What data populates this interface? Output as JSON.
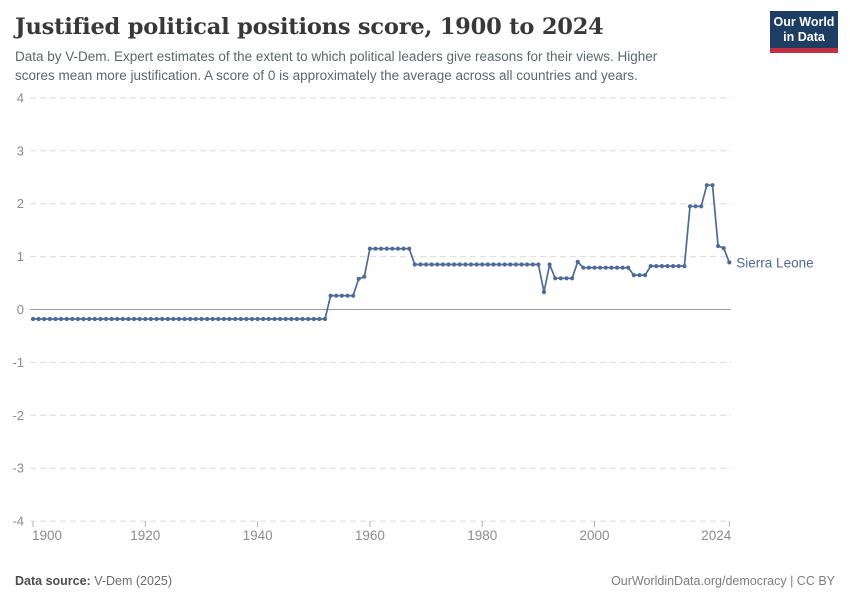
{
  "header": {
    "title": "Justified political positions score, 1900 to 2024",
    "subtitle_line1": "Data by V-Dem. Expert estimates of the extent to which political leaders give reasons for their views. Higher",
    "subtitle_line2": "scores mean more justification. A score of 0 is approximately the average across all countries and years.",
    "logo": {
      "line1": "Our World",
      "line2": "in Data"
    }
  },
  "chart_data": {
    "type": "line",
    "title": "Justified political positions score, 1900 to 2024",
    "xlabel": "",
    "ylabel": "",
    "xlim": [
      1900,
      2024
    ],
    "ylim": [
      -4,
      4
    ],
    "x_ticks": [
      1900,
      1920,
      1940,
      1960,
      1980,
      2000,
      2024
    ],
    "y_ticks": [
      4,
      3,
      2,
      1,
      0,
      -1,
      -2,
      -3,
      -4
    ],
    "grid": "horizontal-dashed",
    "zero_line": true,
    "legend_position": "end-of-line-label",
    "series": [
      {
        "name": "Sierra Leone",
        "color": "#4c6a9c",
        "x_start": 1900,
        "x_step": 1,
        "values": [
          -0.18,
          -0.18,
          -0.18,
          -0.18,
          -0.18,
          -0.18,
          -0.18,
          -0.18,
          -0.18,
          -0.18,
          -0.18,
          -0.18,
          -0.18,
          -0.18,
          -0.18,
          -0.18,
          -0.18,
          -0.18,
          -0.18,
          -0.18,
          -0.18,
          -0.18,
          -0.18,
          -0.18,
          -0.18,
          -0.18,
          -0.18,
          -0.18,
          -0.18,
          -0.18,
          -0.18,
          -0.18,
          -0.18,
          -0.18,
          -0.18,
          -0.18,
          -0.18,
          -0.18,
          -0.18,
          -0.18,
          -0.18,
          -0.18,
          -0.18,
          -0.18,
          -0.18,
          -0.18,
          -0.18,
          -0.18,
          -0.18,
          -0.18,
          -0.18,
          -0.18,
          -0.18,
          0.26,
          0.26,
          0.26,
          0.26,
          0.26,
          0.58,
          0.62,
          1.15,
          1.15,
          1.15,
          1.15,
          1.15,
          1.15,
          1.15,
          1.15,
          0.85,
          0.85,
          0.85,
          0.85,
          0.85,
          0.85,
          0.85,
          0.85,
          0.85,
          0.85,
          0.85,
          0.85,
          0.85,
          0.85,
          0.85,
          0.85,
          0.85,
          0.85,
          0.85,
          0.85,
          0.85,
          0.85,
          0.85,
          0.33,
          0.85,
          0.59,
          0.59,
          0.59,
          0.59,
          0.9,
          0.79,
          0.79,
          0.79,
          0.79,
          0.79,
          0.79,
          0.79,
          0.79,
          0.79,
          0.65,
          0.65,
          0.65,
          0.82,
          0.82,
          0.82,
          0.82,
          0.82,
          0.82,
          0.82,
          1.95,
          1.95,
          1.95,
          2.35,
          2.35,
          1.2,
          1.16,
          0.89
        ]
      }
    ]
  },
  "footer": {
    "source_label": "Data source:",
    "source_value": " V-Dem (2025)",
    "citation": "OurWorldinData.org/democracy | CC BY"
  },
  "colors": {
    "line": "#4c6a9c",
    "grid": "#dcdcdc",
    "zero_line": "#9c9c9c",
    "axis_text": "#8c8c8c",
    "tick_mark": "#b3b3b3",
    "logo_bg": "#1d3d63",
    "logo_accent": "#c0313f"
  }
}
